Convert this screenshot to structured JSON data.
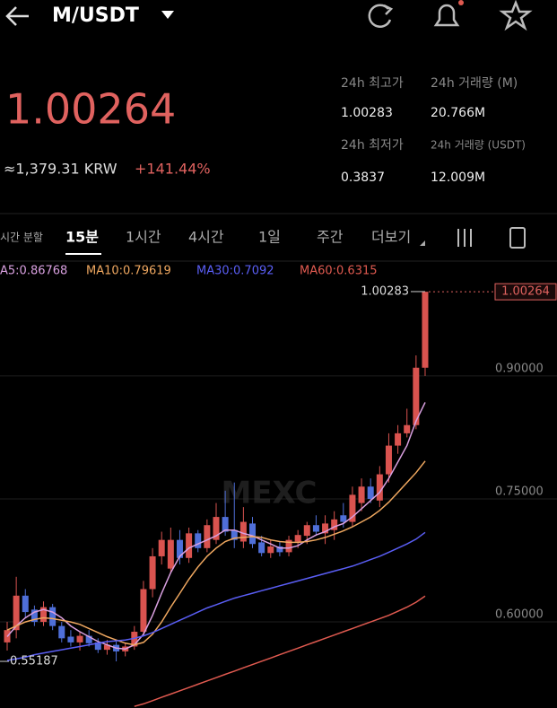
{
  "header": {
    "title": "M/USDT"
  },
  "price": {
    "last": "1.00264",
    "krw": "≈1,379.31 KRW",
    "change": "+141.44%"
  },
  "stats": {
    "high_label": "24h 최고가",
    "vol_m_label": "24h 거래량 (M)",
    "high": "1.00283",
    "vol_m": "20.766M",
    "low_label": "24h 최저가",
    "vol_usdt_label": "24h 거래량 (USDT)",
    "low": "0.3837",
    "vol_usdt": "12.009M"
  },
  "tabs": [
    "시간 분할",
    "15분",
    "1시간",
    "4시간",
    "1일",
    "주간",
    "더보기"
  ],
  "chart_data": {
    "type": "candlestick",
    "watermark": "MEXC",
    "ma_labels": [
      "A5:0.86768",
      "MA10:0.79619",
      "MA30:0.7092",
      "MA60:0.6315"
    ],
    "up_color": "#d9534f",
    "down_color": "#4f6fd9",
    "ylim": [
      0.495,
      1.017
    ],
    "yticks": [
      {
        "value": 0.9,
        "label": "0.90000"
      },
      {
        "value": 0.75,
        "label": "0.75000"
      },
      {
        "value": 0.6,
        "label": "0.60000"
      }
    ],
    "grid": true,
    "high_marker": {
      "value": 1.00283,
      "label": "1.00283"
    },
    "low_marker": {
      "value": 0.55187,
      "label": "0.55187"
    },
    "last_price": {
      "value": 1.00264,
      "label": "1.00264"
    },
    "open": [
      0.575,
      0.59,
      0.632,
      0.615,
      0.6,
      0.618,
      0.595,
      0.582,
      0.575,
      0.583,
      0.575,
      0.566,
      0.572,
      0.564,
      0.57,
      0.588,
      0.64,
      0.68,
      0.665,
      0.7,
      0.678,
      0.708,
      0.69,
      0.7,
      0.728,
      0.712,
      0.698,
      0.72,
      0.697,
      0.684,
      0.692,
      0.685,
      0.698,
      0.705,
      0.718,
      0.708,
      0.712,
      0.73,
      0.722,
      0.745,
      0.765,
      0.748,
      0.78,
      0.815,
      0.83,
      0.84,
      0.91
    ],
    "high": [
      0.6,
      0.655,
      0.64,
      0.62,
      0.625,
      0.622,
      0.6,
      0.59,
      0.588,
      0.59,
      0.58,
      0.578,
      0.576,
      0.575,
      0.595,
      0.65,
      0.69,
      0.71,
      0.715,
      0.712,
      0.715,
      0.712,
      0.725,
      0.745,
      0.76,
      0.77,
      0.74,
      0.728,
      0.705,
      0.7,
      0.698,
      0.705,
      0.712,
      0.722,
      0.73,
      0.73,
      0.735,
      0.745,
      0.765,
      0.775,
      0.775,
      0.79,
      0.83,
      0.84,
      0.86,
      0.925,
      1.00283
    ],
    "low": [
      0.565,
      0.58,
      0.605,
      0.595,
      0.595,
      0.59,
      0.575,
      0.57,
      0.565,
      0.57,
      0.562,
      0.56,
      0.55187,
      0.558,
      0.566,
      0.583,
      0.63,
      0.67,
      0.66,
      0.67,
      0.672,
      0.685,
      0.685,
      0.695,
      0.705,
      0.69,
      0.69,
      0.69,
      0.68,
      0.678,
      0.68,
      0.68,
      0.69,
      0.695,
      0.705,
      0.695,
      0.7,
      0.715,
      0.716,
      0.735,
      0.745,
      0.74,
      0.77,
      0.805,
      0.825,
      0.835,
      0.9
    ],
    "close": [
      0.59,
      0.632,
      0.612,
      0.6,
      0.618,
      0.595,
      0.58,
      0.575,
      0.583,
      0.574,
      0.566,
      0.572,
      0.564,
      0.57,
      0.588,
      0.64,
      0.68,
      0.7,
      0.7,
      0.678,
      0.708,
      0.69,
      0.718,
      0.728,
      0.71,
      0.7,
      0.722,
      0.695,
      0.684,
      0.692,
      0.685,
      0.7,
      0.706,
      0.718,
      0.71,
      0.72,
      0.725,
      0.722,
      0.755,
      0.765,
      0.75,
      0.78,
      0.815,
      0.83,
      0.84,
      0.91,
      1.00264
    ],
    "series": [
      {
        "name": "MA5",
        "color": "#d9a0e0",
        "values": [
          0.582,
          0.595,
          0.605,
          0.612,
          0.615,
          0.612,
          0.605,
          0.595,
          0.588,
          0.582,
          0.576,
          0.572,
          0.568,
          0.567,
          0.572,
          0.585,
          0.608,
          0.635,
          0.66,
          0.68,
          0.69,
          0.695,
          0.7,
          0.705,
          0.712,
          0.712,
          0.708,
          0.705,
          0.7,
          0.695,
          0.69,
          0.69,
          0.693,
          0.7,
          0.706,
          0.71,
          0.716,
          0.72,
          0.728,
          0.738,
          0.748,
          0.758,
          0.775,
          0.795,
          0.815,
          0.845,
          0.86768
        ]
      },
      {
        "name": "MA10",
        "color": "#f0a860",
        "values": [
          0.59,
          0.595,
          0.6,
          0.603,
          0.605,
          0.604,
          0.602,
          0.6,
          0.597,
          0.592,
          0.587,
          0.582,
          0.578,
          0.574,
          0.572,
          0.575,
          0.585,
          0.6,
          0.618,
          0.635,
          0.652,
          0.667,
          0.68,
          0.69,
          0.698,
          0.702,
          0.703,
          0.704,
          0.703,
          0.7,
          0.698,
          0.697,
          0.697,
          0.698,
          0.7,
          0.703,
          0.707,
          0.711,
          0.716,
          0.722,
          0.728,
          0.736,
          0.746,
          0.758,
          0.77,
          0.782,
          0.79619
        ]
      },
      {
        "name": "MA30",
        "color": "#5a5ef5",
        "values": [
          0.553,
          0.555,
          0.557,
          0.56,
          0.562,
          0.564,
          0.566,
          0.568,
          0.57,
          0.572,
          0.574,
          0.576,
          0.577,
          0.578,
          0.58,
          0.583,
          0.587,
          0.592,
          0.597,
          0.602,
          0.607,
          0.612,
          0.617,
          0.621,
          0.625,
          0.629,
          0.632,
          0.635,
          0.638,
          0.641,
          0.644,
          0.647,
          0.65,
          0.653,
          0.656,
          0.659,
          0.662,
          0.665,
          0.668,
          0.672,
          0.676,
          0.68,
          0.685,
          0.69,
          0.695,
          0.701,
          0.7092
        ]
      },
      {
        "name": "MA60",
        "color": "#e05a50",
        "values": [
          null,
          null,
          null,
          null,
          null,
          null,
          null,
          null,
          null,
          null,
          null,
          null,
          null,
          null,
          0.497,
          0.5,
          0.504,
          0.508,
          0.512,
          0.516,
          0.52,
          0.524,
          0.528,
          0.532,
          0.536,
          0.54,
          0.544,
          0.548,
          0.552,
          0.556,
          0.56,
          0.564,
          0.568,
          0.572,
          0.576,
          0.58,
          0.584,
          0.588,
          0.592,
          0.596,
          0.6,
          0.604,
          0.608,
          0.613,
          0.618,
          0.624,
          0.6315
        ]
      }
    ]
  }
}
